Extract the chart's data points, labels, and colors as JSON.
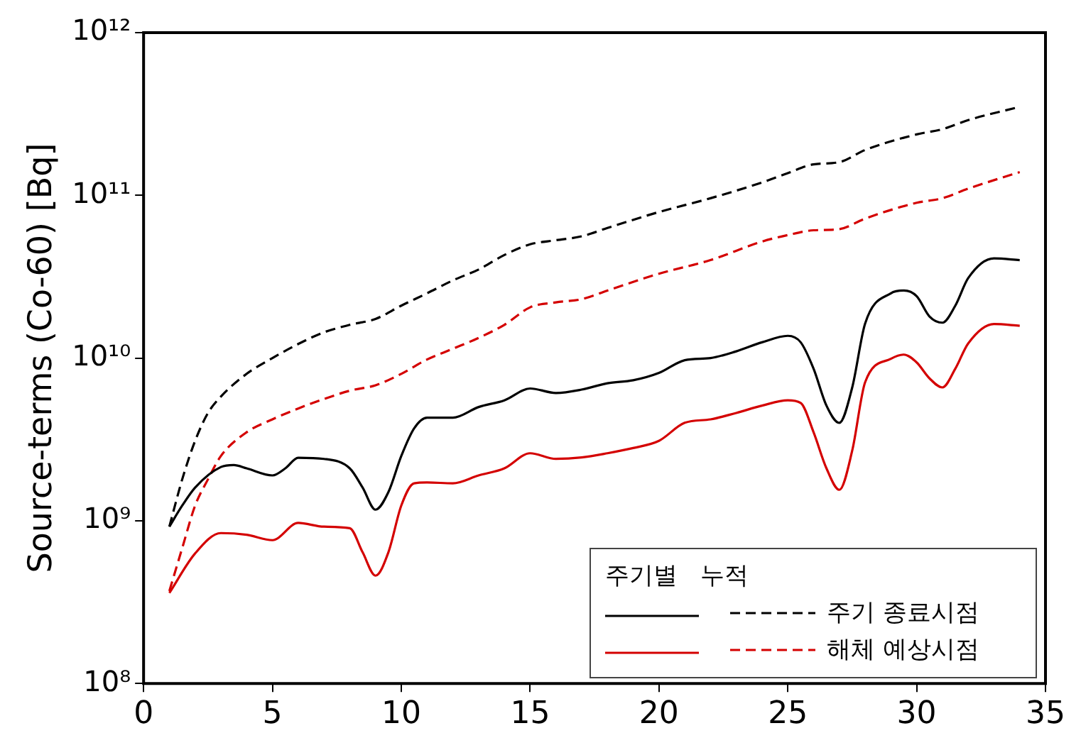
{
  "chart_data": {
    "type": "line",
    "ylabel": "Source-terms (Co-60) [Bq]",
    "legend_title": "주기별   누적",
    "log": true,
    "grid": false,
    "legend": "bottom right",
    "marker": "none",
    "xlim": [
      0,
      35
    ],
    "xticks": [
      0,
      5,
      10,
      15,
      20,
      25,
      30,
      35
    ],
    "ylim": [
      100000000,
      1000000000000
    ],
    "yticks": [
      {
        "value": 100000000,
        "label": "10⁸"
      },
      {
        "value": 1000000000,
        "label": "10⁹"
      },
      {
        "value": 10000000000,
        "label": "10¹⁰"
      },
      {
        "value": 100000000000,
        "label": "10¹¹"
      },
      {
        "value": 1000000000000,
        "label": "10¹²"
      }
    ],
    "series": [
      {
        "color": "#000000",
        "line_style": "solid",
        "x": [
          1,
          1.5,
          2,
          3,
          3.5,
          4,
          5,
          5.5,
          6,
          7,
          8,
          8.5,
          9,
          9.5,
          10,
          10.5,
          11,
          12,
          13,
          14,
          15,
          16,
          17,
          18,
          19,
          20,
          21,
          22,
          23,
          24,
          25,
          25.5,
          26,
          26.5,
          27,
          27.5,
          28,
          29,
          29.5,
          30,
          30.5,
          31,
          31.5,
          32,
          33,
          34
        ],
        "values": [
          920000000.0,
          1240000000.0,
          1600000000.0,
          2140000000.0,
          2200000000.0,
          2100000000.0,
          1900000000.0,
          2100000000.0,
          2440000000.0,
          2400000000.0,
          2100000000.0,
          1600000000.0,
          1170000000.0,
          1500000000.0,
          2500000000.0,
          3700000000.0,
          4300000000.0,
          4300000000.0,
          5000000000.0,
          5500000000.0,
          6500000000.0,
          6100000000.0,
          6400000000.0,
          7000000000.0,
          7300000000.0,
          8100000000.0,
          9700000000.0,
          10000000000.0,
          11000000000.0,
          12500000000.0,
          13700000000.0,
          12500000000.0,
          8600000000.0,
          5100000000.0,
          4000000000.0,
          6600000000.0,
          16300000000.0,
          25000000000.0,
          26000000000.0,
          24000000000.0,
          18000000000.0,
          16500000000.0,
          21000000000.0,
          31000000000.0,
          41000000000.0,
          40000000000.0
        ]
      },
      {
        "name": "주기 종료시점",
        "color": "#000000",
        "line_style": "dashed",
        "x": [
          1,
          1.5,
          2,
          2.5,
          3,
          4,
          5,
          6,
          7,
          8,
          9,
          10,
          11,
          12,
          13,
          14,
          15,
          16,
          17,
          18,
          20,
          22,
          24,
          25,
          26,
          27,
          28,
          30,
          31,
          32,
          34
        ],
        "values": [
          920000000.0,
          1800000000.0,
          3100000000.0,
          4600000000.0,
          5800000000.0,
          8000000000.0,
          10000000000.0,
          12200000000.0,
          14400000000.0,
          16000000000.0,
          17400000000.0,
          21000000000.0,
          25000000000.0,
          30000000000.0,
          35000000000.0,
          43000000000.0,
          50000000000.0,
          53000000000.0,
          56000000000.0,
          63000000000.0,
          79000000000.0,
          96000000000.0,
          120000000000.0,
          137000000000.0,
          155000000000.0,
          160000000000.0,
          190000000000.0,
          237000000000.0,
          255000000000.0,
          290000000000.0,
          350000000000.0
        ]
      },
      {
        "color": "#d40000",
        "line_style": "solid",
        "x": [
          1,
          2,
          3,
          4,
          5,
          6,
          7,
          8,
          8.5,
          9,
          9.5,
          10,
          10.5,
          11,
          12,
          13,
          14,
          15,
          16,
          17,
          18,
          19,
          20,
          21,
          22,
          23,
          24,
          25,
          25.5,
          26,
          26.5,
          27,
          27.5,
          28,
          29,
          29.5,
          30,
          30.5,
          31,
          31.5,
          32,
          33,
          34
        ],
        "values": [
          360000000.0,
          630000000.0,
          840000000.0,
          820000000.0,
          760000000.0,
          970000000.0,
          920000000.0,
          900000000.0,
          640000000.0,
          460000000.0,
          640000000.0,
          1240000000.0,
          1700000000.0,
          1720000000.0,
          1700000000.0,
          1900000000.0,
          2100000000.0,
          2600000000.0,
          2400000000.0,
          2450000000.0,
          2600000000.0,
          2800000000.0,
          3100000000.0,
          4000000000.0,
          4200000000.0,
          4600000000.0,
          5100000000.0,
          5500000000.0,
          5300000000.0,
          3500000000.0,
          2100000000.0,
          1550000000.0,
          2700000000.0,
          7100000000.0,
          9900000000.0,
          10500000000.0,
          9400000000.0,
          7500000000.0,
          6600000000.0,
          8600000000.0,
          12300000000.0,
          16200000000.0,
          15800000000.0
        ]
      },
      {
        "name": "해체 예상시점",
        "color": "#d40000",
        "line_style": "dashed",
        "x": [
          1,
          1.5,
          2,
          2.5,
          3,
          4,
          5,
          6,
          7,
          8,
          9,
          10,
          11,
          12,
          13,
          14,
          15,
          16,
          17,
          18,
          20,
          22,
          24,
          25,
          26,
          27,
          28,
          30,
          31,
          32,
          34
        ],
        "values": [
          370000000.0,
          680000000.0,
          1240000000.0,
          1800000000.0,
          2500000000.0,
          3500000000.0,
          4200000000.0,
          4900000000.0,
          5600000000.0,
          6300000000.0,
          6800000000.0,
          8000000000.0,
          9800000000.0,
          11400000000.0,
          13300000000.0,
          16000000000.0,
          20500000000.0,
          22000000000.0,
          23000000000.0,
          26000000000.0,
          33000000000.0,
          40000000000.0,
          52000000000.0,
          57000000000.0,
          61000000000.0,
          62000000000.0,
          72000000000.0,
          90000000000.0,
          96000000000.0,
          110000000000.0,
          139000000000.0
        ]
      }
    ]
  }
}
